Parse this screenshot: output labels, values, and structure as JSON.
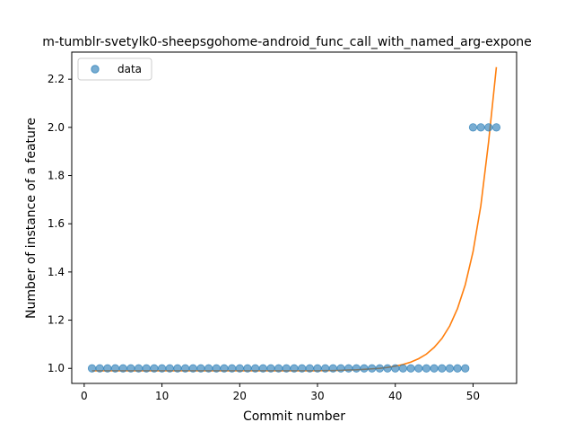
{
  "chart_data": {
    "type": "scatter",
    "title": "m-tumblr-svetylk0-sheepsgohome-android_func_call_with_named_arg-expone",
    "xlabel": "Commit number",
    "ylabel": "Number of instance of a feature",
    "xlim": [
      -1.6,
      55.6
    ],
    "ylim": [
      0.9375,
      2.3125
    ],
    "xticks": [
      0,
      10,
      20,
      30,
      40,
      50
    ],
    "xtick_labels": [
      "0",
      "10",
      "20",
      "30",
      "40",
      "50"
    ],
    "yticks": [
      1.0,
      1.2,
      1.4,
      1.6,
      1.8,
      2.0,
      2.2
    ],
    "ytick_labels": [
      "1.0",
      "1.2",
      "1.4",
      "1.6",
      "1.8",
      "2.0",
      "2.2"
    ],
    "grid": false,
    "legend": {
      "placement": "upper-left",
      "entries": [
        "data"
      ]
    },
    "series": [
      {
        "name": "data",
        "kind": "points",
        "color": "#1f77b4",
        "x": [
          1,
          2,
          3,
          4,
          5,
          6,
          7,
          8,
          9,
          10,
          11,
          12,
          13,
          14,
          15,
          16,
          17,
          18,
          19,
          20,
          21,
          22,
          23,
          24,
          25,
          26,
          27,
          28,
          29,
          30,
          31,
          32,
          33,
          34,
          35,
          36,
          37,
          38,
          39,
          40,
          41,
          42,
          43,
          44,
          45,
          46,
          47,
          48,
          49,
          50,
          51,
          52,
          53
        ],
        "y": [
          1,
          1,
          1,
          1,
          1,
          1,
          1,
          1,
          1,
          1,
          1,
          1,
          1,
          1,
          1,
          1,
          1,
          1,
          1,
          1,
          1,
          1,
          1,
          1,
          1,
          1,
          1,
          1,
          1,
          1,
          1,
          1,
          1,
          1,
          1,
          1,
          1,
          1,
          1,
          1,
          1,
          1,
          1,
          1,
          1,
          1,
          1,
          1,
          1,
          2,
          2,
          2,
          2
        ]
      },
      {
        "kind": "line",
        "color": "#ff7f0e",
        "x": [
          1,
          2,
          3,
          4,
          5,
          6,
          7,
          8,
          9,
          10,
          11,
          12,
          13,
          14,
          15,
          16,
          17,
          18,
          19,
          20,
          21,
          22,
          23,
          24,
          25,
          26,
          27,
          28,
          29,
          30,
          31,
          32,
          33,
          34,
          35,
          36,
          37,
          38,
          39,
          40,
          41,
          42,
          43,
          44,
          45,
          46,
          47,
          48,
          49,
          50,
          51,
          52,
          53
        ],
        "y": [
          0.99,
          0.99,
          0.99,
          0.99,
          0.99,
          0.99,
          0.99,
          0.99,
          0.99,
          0.99,
          0.99,
          0.99,
          0.99,
          0.99,
          0.99,
          0.99,
          0.99,
          0.99,
          0.99,
          0.99,
          0.99,
          0.99,
          0.99,
          0.99,
          0.99,
          0.99,
          0.99,
          0.99,
          0.99,
          0.99,
          0.991,
          0.991,
          0.992,
          0.993,
          0.994,
          0.996,
          0.998,
          1.0,
          1.004,
          1.009,
          1.016,
          1.026,
          1.04,
          1.059,
          1.087,
          1.124,
          1.176,
          1.248,
          1.347,
          1.484,
          1.675,
          1.94,
          2.25
        ]
      }
    ]
  }
}
